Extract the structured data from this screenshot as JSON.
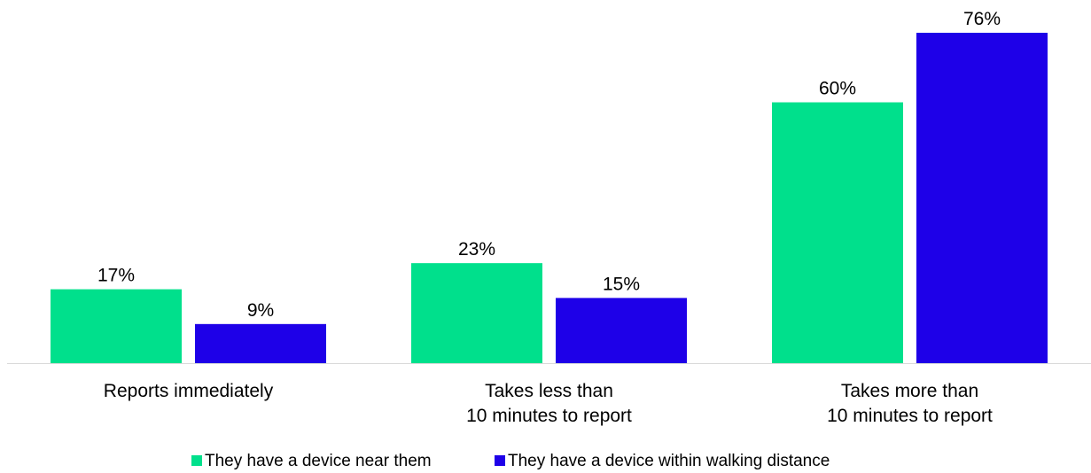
{
  "chart_data": {
    "type": "bar",
    "categories": [
      [
        "Reports immediately"
      ],
      [
        "Takes less than",
        "10 minutes to report"
      ],
      [
        "Takes more than",
        "10 minutes to report"
      ]
    ],
    "series": [
      {
        "name": "They have a device near them",
        "color": "#00E08C",
        "values": [
          17,
          23,
          60
        ],
        "labels": [
          "17%",
          "23%",
          "60%"
        ]
      },
      {
        "name": "They have a device within walking distance",
        "color": "#1E00E8",
        "values": [
          9,
          15,
          76
        ],
        "labels": [
          "9%",
          "15%",
          "76%"
        ]
      }
    ],
    "ylim": [
      0,
      76
    ],
    "grid": false,
    "legend_position": "bottom",
    "axis_color": "#D9D9D9"
  }
}
